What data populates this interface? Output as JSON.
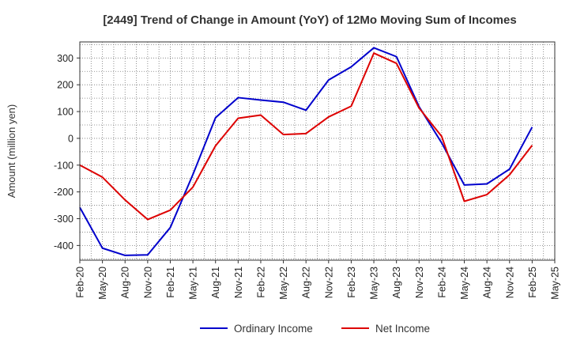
{
  "chart_data": {
    "type": "line",
    "title": "[2449]  Trend of Change in Amount (YoY) of 12Mo Moving Sum of Incomes",
    "xlabel": "",
    "ylabel": "Amount (million yen)",
    "ylim": [
      -455,
      360
    ],
    "yticks": [
      -400,
      -300,
      -200,
      -100,
      0,
      100,
      200,
      300
    ],
    "grid": true,
    "legend": "bottom-center",
    "x": [
      "Feb-20",
      "May-20",
      "Aug-20",
      "Nov-20",
      "Feb-21",
      "May-21",
      "Aug-21",
      "Nov-21",
      "Feb-22",
      "May-22",
      "Aug-22",
      "Nov-22",
      "Feb-23",
      "May-23",
      "Aug-23",
      "Nov-23",
      "Feb-24",
      "May-24",
      "Aug-24",
      "Nov-24",
      "Feb-25",
      "May-25"
    ],
    "series": [
      {
        "name": "Ordinary Income",
        "color": "#0000cc",
        "values": [
          -258,
          -410,
          -437,
          -435,
          -333,
          -135,
          77,
          152,
          143,
          135,
          105,
          218,
          267,
          338,
          305,
          118,
          -17,
          -174,
          -170,
          -115,
          42,
          null
        ]
      },
      {
        "name": "Net Income",
        "color": "#dd0000",
        "values": [
          -100,
          -145,
          -230,
          -303,
          -268,
          -182,
          -28,
          75,
          87,
          14,
          18,
          80,
          120,
          318,
          280,
          113,
          7,
          -235,
          -210,
          -136,
          -26,
          null
        ]
      }
    ]
  }
}
